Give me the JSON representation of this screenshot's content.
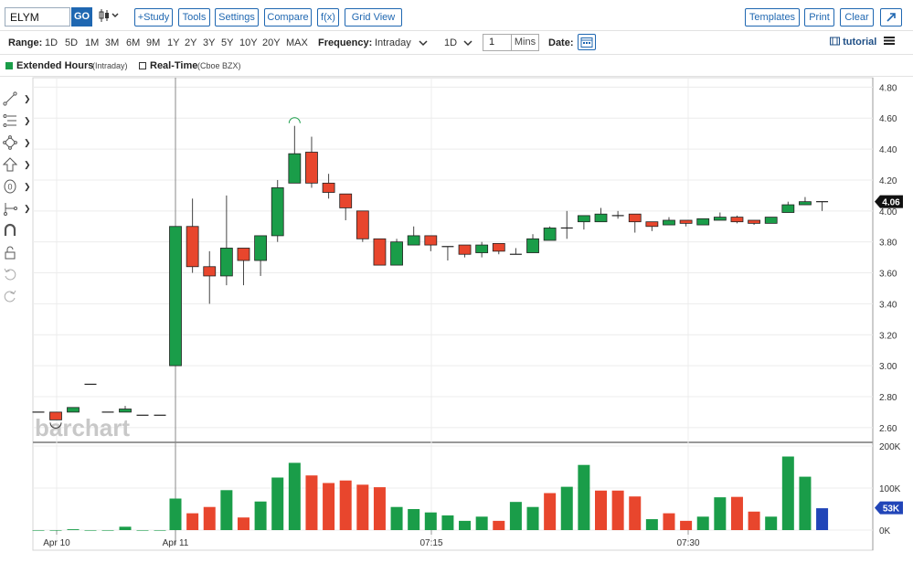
{
  "toolbar": {
    "symbol": "ELYM",
    "go_label": "GO",
    "chart_type_icon": "candlestick-icon",
    "buttons": [
      "+Study",
      "Tools",
      "Settings",
      "Compare",
      "f(x)",
      "Grid View"
    ],
    "right_buttons": [
      "Templates",
      "Print",
      "Clear"
    ],
    "expand_icon": "expand-icon"
  },
  "range_bar": {
    "label": "Range:",
    "ranges": [
      "1D",
      "5D",
      "1M",
      "3M",
      "6M",
      "9M",
      "1Y",
      "2Y",
      "3Y",
      "5Y",
      "10Y",
      "20Y",
      "MAX"
    ],
    "frequency_label": "Frequency:",
    "frequency_value": "Intraday",
    "period_value": "1D",
    "interval_value": "1",
    "interval_unit": "Mins",
    "date_label": "Date:",
    "tutorial_label": "tutorial"
  },
  "legend": {
    "items": [
      {
        "label": "Extended Hours",
        "suffix": "(Intraday)",
        "color": "#1a9d49"
      },
      {
        "label": "Real-Time",
        "suffix": "(Cboe BZX)",
        "color": "#ffffff"
      }
    ]
  },
  "sidebar_icons": [
    "line-tool-icon",
    "fib-tool-icon",
    "shape-tool-icon",
    "arrow-tool-icon",
    "text-tool-icon",
    "measure-tool-icon",
    "magnet-icon",
    "lock-icon",
    "undo-icon",
    "redo-icon"
  ],
  "watermark": "barchart",
  "colors": {
    "up": "#1a9d49",
    "down": "#e8462d",
    "accent": "#1f67b1",
    "vol_blue": "#2145b8"
  },
  "chart_data": {
    "type": "candlestick",
    "price_axis": {
      "ticks": [
        "4.80",
        "4.60",
        "4.40",
        "4.20",
        "4.00",
        "3.80",
        "3.60",
        "3.40",
        "3.20",
        "3.00",
        "2.80",
        "2.60"
      ],
      "ylim": [
        2.54,
        4.82
      ]
    },
    "last_price": "4.06",
    "volume_axis": {
      "ticks": [
        "200K",
        "100K",
        "0K"
      ],
      "ylim": [
        0,
        200
      ]
    },
    "last_volume": "53K",
    "x_ticks": [
      "Apr 10",
      "Apr 11",
      "07:15",
      "07:30"
    ],
    "candles": [
      {
        "o": 2.7,
        "h": 2.7,
        "l": 2.7,
        "c": 2.7
      },
      {
        "o": 2.7,
        "h": 2.7,
        "l": 2.65,
        "c": 2.65
      },
      {
        "o": 2.7,
        "h": 2.73,
        "l": 2.7,
        "c": 2.73
      },
      {
        "o": 2.88,
        "h": 2.88,
        "l": 2.88,
        "c": 2.88
      },
      {
        "o": 2.7,
        "h": 2.7,
        "l": 2.7,
        "c": 2.7
      },
      {
        "o": 2.7,
        "h": 2.74,
        "l": 2.7,
        "c": 2.72
      },
      {
        "o": 2.68,
        "h": 2.68,
        "l": 2.68,
        "c": 2.68
      },
      {
        "o": 2.68,
        "h": 2.68,
        "l": 2.68,
        "c": 2.68
      },
      {
        "o": 3.0,
        "h": 3.9,
        "l": 3.0,
        "c": 3.9
      },
      {
        "o": 3.9,
        "h": 4.08,
        "l": 3.6,
        "c": 3.64
      },
      {
        "o": 3.64,
        "h": 3.74,
        "l": 3.4,
        "c": 3.58
      },
      {
        "o": 3.58,
        "h": 4.1,
        "l": 3.52,
        "c": 3.76
      },
      {
        "o": 3.76,
        "h": 3.76,
        "l": 3.52,
        "c": 3.68
      },
      {
        "o": 3.68,
        "h": 3.84,
        "l": 3.58,
        "c": 3.84
      },
      {
        "o": 3.84,
        "h": 4.2,
        "l": 3.8,
        "c": 4.15
      },
      {
        "o": 4.18,
        "h": 4.55,
        "l": 4.18,
        "c": 4.37
      },
      {
        "o": 4.38,
        "h": 4.48,
        "l": 4.15,
        "c": 4.18
      },
      {
        "o": 4.18,
        "h": 4.24,
        "l": 4.08,
        "c": 4.12
      },
      {
        "o": 4.11,
        "h": 4.11,
        "l": 3.94,
        "c": 4.02
      },
      {
        "o": 4.0,
        "h": 4.0,
        "l": 3.8,
        "c": 3.82
      },
      {
        "o": 3.82,
        "h": 3.82,
        "l": 3.65,
        "c": 3.65
      },
      {
        "o": 3.65,
        "h": 3.82,
        "l": 3.65,
        "c": 3.8
      },
      {
        "o": 3.78,
        "h": 3.9,
        "l": 3.78,
        "c": 3.84
      },
      {
        "o": 3.84,
        "h": 3.84,
        "l": 3.74,
        "c": 3.78
      },
      {
        "o": 3.77,
        "h": 3.77,
        "l": 3.68,
        "c": 3.77
      },
      {
        "o": 3.78,
        "h": 3.78,
        "l": 3.7,
        "c": 3.72
      },
      {
        "o": 3.73,
        "h": 3.8,
        "l": 3.7,
        "c": 3.78
      },
      {
        "o": 3.79,
        "h": 3.79,
        "l": 3.72,
        "c": 3.74
      },
      {
        "o": 3.72,
        "h": 3.76,
        "l": 3.72,
        "c": 3.72
      },
      {
        "o": 3.73,
        "h": 3.85,
        "l": 3.73,
        "c": 3.82
      },
      {
        "o": 3.81,
        "h": 3.9,
        "l": 3.81,
        "c": 3.89
      },
      {
        "o": 3.89,
        "h": 4.0,
        "l": 3.82,
        "c": 3.89
      },
      {
        "o": 3.93,
        "h": 3.97,
        "l": 3.88,
        "c": 3.97
      },
      {
        "o": 3.93,
        "h": 4.02,
        "l": 3.93,
        "c": 3.98
      },
      {
        "o": 3.97,
        "h": 4.0,
        "l": 3.95,
        "c": 3.97
      },
      {
        "o": 3.98,
        "h": 3.98,
        "l": 3.86,
        "c": 3.93
      },
      {
        "o": 3.93,
        "h": 3.93,
        "l": 3.87,
        "c": 3.9
      },
      {
        "o": 3.91,
        "h": 3.96,
        "l": 3.91,
        "c": 3.94
      },
      {
        "o": 3.94,
        "h": 3.94,
        "l": 3.9,
        "c": 3.92
      },
      {
        "o": 3.91,
        "h": 3.95,
        "l": 3.91,
        "c": 3.95
      },
      {
        "o": 3.94,
        "h": 3.99,
        "l": 3.94,
        "c": 3.96
      },
      {
        "o": 3.96,
        "h": 3.97,
        "l": 3.92,
        "c": 3.93
      },
      {
        "o": 3.94,
        "h": 3.94,
        "l": 3.91,
        "c": 3.92
      },
      {
        "o": 3.92,
        "h": 3.96,
        "l": 3.92,
        "c": 3.96
      },
      {
        "o": 3.99,
        "h": 4.06,
        "l": 3.99,
        "c": 4.04
      },
      {
        "o": 4.04,
        "h": 4.09,
        "l": 4.04,
        "c": 4.06
      },
      {
        "o": 4.06,
        "h": 4.06,
        "l": 4.0,
        "c": 4.06
      }
    ],
    "volumes": [
      0,
      0,
      2,
      0,
      0,
      8,
      0,
      0,
      75,
      40,
      55,
      95,
      30,
      68,
      125,
      160,
      130,
      112,
      118,
      108,
      102,
      55,
      50,
      42,
      35,
      22,
      32,
      22,
      67,
      55,
      88,
      103,
      155,
      94,
      94,
      80,
      26,
      40,
      22,
      32,
      78,
      79,
      44,
      32,
      175,
      127,
      52
    ],
    "volume_colors": [
      "up",
      "up",
      "up",
      "up",
      "up",
      "up",
      "up",
      "up",
      "up",
      "down",
      "down",
      "up",
      "down",
      "up",
      "up",
      "up",
      "down",
      "down",
      "down",
      "down",
      "down",
      "up",
      "up",
      "up",
      "up",
      "up",
      "up",
      "down",
      "up",
      "up",
      "down",
      "up",
      "up",
      "down",
      "down",
      "down",
      "up",
      "down",
      "down",
      "up",
      "up",
      "down",
      "down",
      "up",
      "up",
      "up",
      "blue"
    ]
  }
}
